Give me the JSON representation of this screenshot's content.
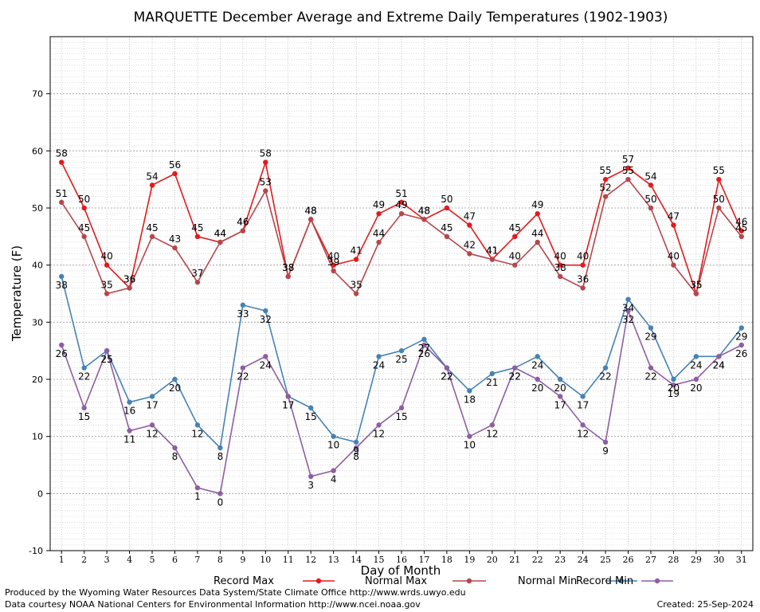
{
  "chart_data": {
    "type": "line",
    "title": "MARQUETTE December Average and Extreme Daily Temperatures (1902-1903)",
    "xlabel": "Day of Month",
    "ylabel": "Temperature (F)",
    "xlim": [
      0.5,
      31.5
    ],
    "ylim": [
      -10,
      80
    ],
    "y_ticks": [
      -10,
      0,
      10,
      20,
      30,
      40,
      50,
      60,
      70
    ],
    "x": [
      1,
      2,
      3,
      4,
      5,
      6,
      7,
      8,
      9,
      10,
      11,
      12,
      13,
      14,
      15,
      16,
      17,
      18,
      19,
      20,
      21,
      22,
      23,
      24,
      25,
      26,
      27,
      28,
      29,
      30,
      31
    ],
    "grid": true,
    "legend_position": "bottom",
    "series": [
      {
        "name": "Record Max",
        "color": "#e31a1c",
        "values": [
          58,
          50,
          40,
          36,
          54,
          56,
          45,
          44,
          46,
          58,
          38,
          48,
          40,
          41,
          49,
          51,
          48,
          50,
          47,
          41,
          45,
          49,
          40,
          40,
          55,
          57,
          54,
          47,
          35,
          55,
          46
        ],
        "label_position": "above"
      },
      {
        "name": "Normal Max",
        "color": "#b5474c",
        "values": [
          51,
          45,
          35,
          36,
          45,
          43,
          37,
          44,
          46,
          53,
          38,
          48,
          39,
          35,
          44,
          49,
          48,
          45,
          42,
          41,
          40,
          44,
          38,
          36,
          52,
          55,
          50,
          40,
          35,
          50,
          45
        ],
        "label_position": "above"
      },
      {
        "name": "Normal Min",
        "color": "#4682b4",
        "values": [
          38,
          22,
          25,
          16,
          17,
          20,
          12,
          8,
          33,
          32,
          17,
          15,
          10,
          9,
          24,
          25,
          27,
          22,
          18,
          21,
          22,
          24,
          20,
          17,
          22,
          34,
          29,
          20,
          24,
          24,
          29
        ],
        "label_position": "below"
      },
      {
        "name": "Record Min",
        "color": "#8e5ea2",
        "values": [
          26,
          15,
          25,
          11,
          12,
          8,
          1,
          0,
          22,
          24,
          17,
          3,
          4,
          8,
          12,
          15,
          26,
          22,
          10,
          12,
          22,
          20,
          17,
          12,
          9,
          32,
          22,
          19,
          20,
          24,
          26
        ],
        "label_position": "below"
      }
    ]
  },
  "footer": {
    "produced_by": "Produced by the Wyoming Water Resources Data System/State Climate Office http://www.wrds.uwyo.edu",
    "courtesy": "Data courtesy NOAA National Centers for Environmental Information http://www.ncei.noaa.gov",
    "created": "Created: 25-Sep-2024"
  }
}
